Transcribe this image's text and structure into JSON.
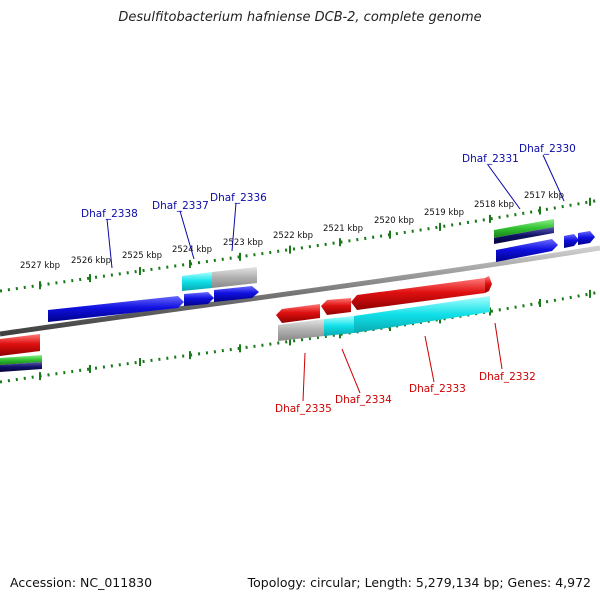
{
  "title": "Desulfitobacterium hafniense DCB-2, complete genome",
  "footer": {
    "accession": "Accession: NC_011830",
    "summary": "Topology: circular; Length: 5,279,134 bp; Genes: 4,972"
  },
  "colors": {
    "forward_label": "#0a0aa8",
    "reverse_label": "#cc0000",
    "forward_gene": "#1010e0",
    "reverse_gene": "#e01010",
    "cyan_track": "#10e0e8",
    "gray_track": "#b0b0b0",
    "green_track": "#30c030",
    "navy_track": "#101068",
    "backbone": "#808080",
    "tick": "#1a7a1a"
  },
  "scale_labels": [
    "2527 kbp",
    "2526 kbp",
    "2525 kbp",
    "2524 kbp",
    "2523 kbp",
    "2522 kbp",
    "2521 kbp",
    "2520 kbp",
    "2519 kbp",
    "2518 kbp",
    "2517 kbp"
  ],
  "forward_genes": [
    "Dhaf_2338",
    "Dhaf_2337",
    "Dhaf_2336",
    "Dhaf_2331",
    "Dhaf_2330"
  ],
  "reverse_genes": [
    "Dhaf_2335",
    "Dhaf_2334",
    "Dhaf_2333",
    "Dhaf_2332"
  ]
}
